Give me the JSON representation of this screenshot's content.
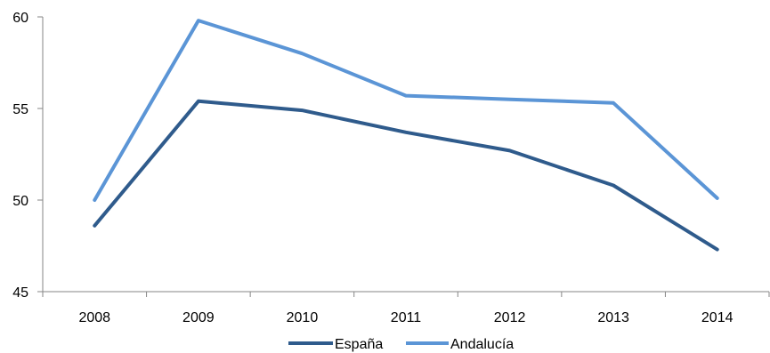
{
  "chart_data": {
    "type": "line",
    "x": [
      "2008",
      "2009",
      "2010",
      "2011",
      "2012",
      "2013",
      "2014"
    ],
    "series": [
      {
        "name": "España",
        "values": [
          48.6,
          55.4,
          54.9,
          53.7,
          52.7,
          50.8,
          47.3
        ],
        "color": "#2f5b8c"
      },
      {
        "name": "Andalucía",
        "values": [
          50.0,
          59.8,
          58.0,
          55.7,
          55.5,
          55.3,
          50.1
        ],
        "color": "#5b95d6"
      }
    ],
    "ylim": [
      45,
      60
    ],
    "yticks": [
      "45",
      "50",
      "55",
      "60"
    ],
    "grid": false,
    "legend_position": "bottom"
  }
}
